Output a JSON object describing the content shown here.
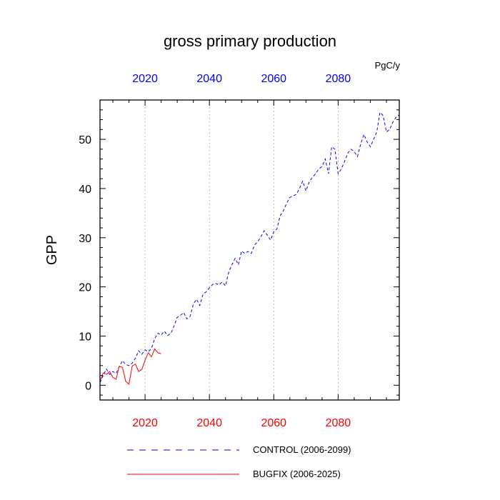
{
  "chart_data": {
    "type": "line",
    "title": "gross primary production",
    "units": "PgC/y",
    "ylabel": "GPP",
    "xlabel": "",
    "xlim": [
      2006,
      2099
    ],
    "ylim": [
      -3,
      58
    ],
    "x_ticks": [
      2020,
      2040,
      2060,
      2080
    ],
    "y_ticks": [
      0,
      10,
      20,
      30,
      40,
      50
    ],
    "top_x_tick_color": "#0000ff",
    "bottom_x_tick_color": "#ff0000",
    "grid_x": true,
    "series": [
      {
        "name": "CONTROL (2006-2099)",
        "color": "#0000ff",
        "dash": "dashed",
        "x": [
          2006,
          2007,
          2008,
          2009,
          2010,
          2011,
          2012,
          2013,
          2014,
          2015,
          2016,
          2017,
          2018,
          2019,
          2020,
          2021,
          2022,
          2023,
          2024,
          2025,
          2026,
          2027,
          2028,
          2029,
          2030,
          2031,
          2032,
          2033,
          2034,
          2035,
          2036,
          2037,
          2038,
          2039,
          2040,
          2041,
          2042,
          2043,
          2044,
          2045,
          2046,
          2047,
          2048,
          2049,
          2050,
          2051,
          2052,
          2053,
          2054,
          2055,
          2056,
          2057,
          2058,
          2059,
          2060,
          2061,
          2062,
          2063,
          2064,
          2065,
          2066,
          2067,
          2068,
          2069,
          2070,
          2071,
          2072,
          2073,
          2074,
          2075,
          2076,
          2077,
          2078,
          2079,
          2080,
          2081,
          2082,
          2083,
          2084,
          2085,
          2086,
          2087,
          2088,
          2089,
          2090,
          2091,
          2092,
          2093,
          2094,
          2095,
          2096,
          2097,
          2098,
          2099
        ],
        "values": [
          0.5,
          2.0,
          3.3,
          2.2,
          2.8,
          2.4,
          3.8,
          5.0,
          4.2,
          4.0,
          4.5,
          5.5,
          7.0,
          6.3,
          7.2,
          6.8,
          7.5,
          9.5,
          10.6,
          10.2,
          11.0,
          10.1,
          10.5,
          12.0,
          13.8,
          14.2,
          14.8,
          13.5,
          14.0,
          16.5,
          17.5,
          16.2,
          18.5,
          19.0,
          19.8,
          20.5,
          20.7,
          20.4,
          21.0,
          20.2,
          23.0,
          24.5,
          25.8,
          24.5,
          27.3,
          26.8,
          27.2,
          26.8,
          28.5,
          29.2,
          30.2,
          31.4,
          30.5,
          29.5,
          31.2,
          31.8,
          34.5,
          35.5,
          37.0,
          38.2,
          38.5,
          38.8,
          40.0,
          41.5,
          39.5,
          41.3,
          42.3,
          43.0,
          44.0,
          44.5,
          46.0,
          43.0,
          48.5,
          48.0,
          43.0,
          44.0,
          45.5,
          47.2,
          48.0,
          47.5,
          46.5,
          49.0,
          51.0,
          49.5,
          48.5,
          50.0,
          51.5,
          55.5,
          54.8,
          51.5,
          52.0,
          53.5,
          54.5,
          55.0
        ]
      },
      {
        "name": "BUGFIX (2006-2025)",
        "color": "#ff0000",
        "dash": "solid",
        "x": [
          2006,
          2007,
          2008,
          2009,
          2010,
          2011,
          2012,
          2013,
          2014,
          2015,
          2016,
          2017,
          2018,
          2019,
          2020,
          2021,
          2022,
          2023,
          2024,
          2025
        ],
        "values": [
          0.8,
          2.5,
          2.2,
          2.8,
          1.6,
          1.2,
          3.9,
          3.6,
          0.8,
          0.2,
          3.9,
          4.3,
          2.8,
          3.2,
          5.1,
          6.6,
          5.8,
          7.4,
          6.6,
          6.4
        ]
      }
    ],
    "legend": {
      "position": "bottom",
      "entries": [
        "CONTROL (2006-2099)",
        "BUGFIX (2006-2025)"
      ]
    }
  }
}
